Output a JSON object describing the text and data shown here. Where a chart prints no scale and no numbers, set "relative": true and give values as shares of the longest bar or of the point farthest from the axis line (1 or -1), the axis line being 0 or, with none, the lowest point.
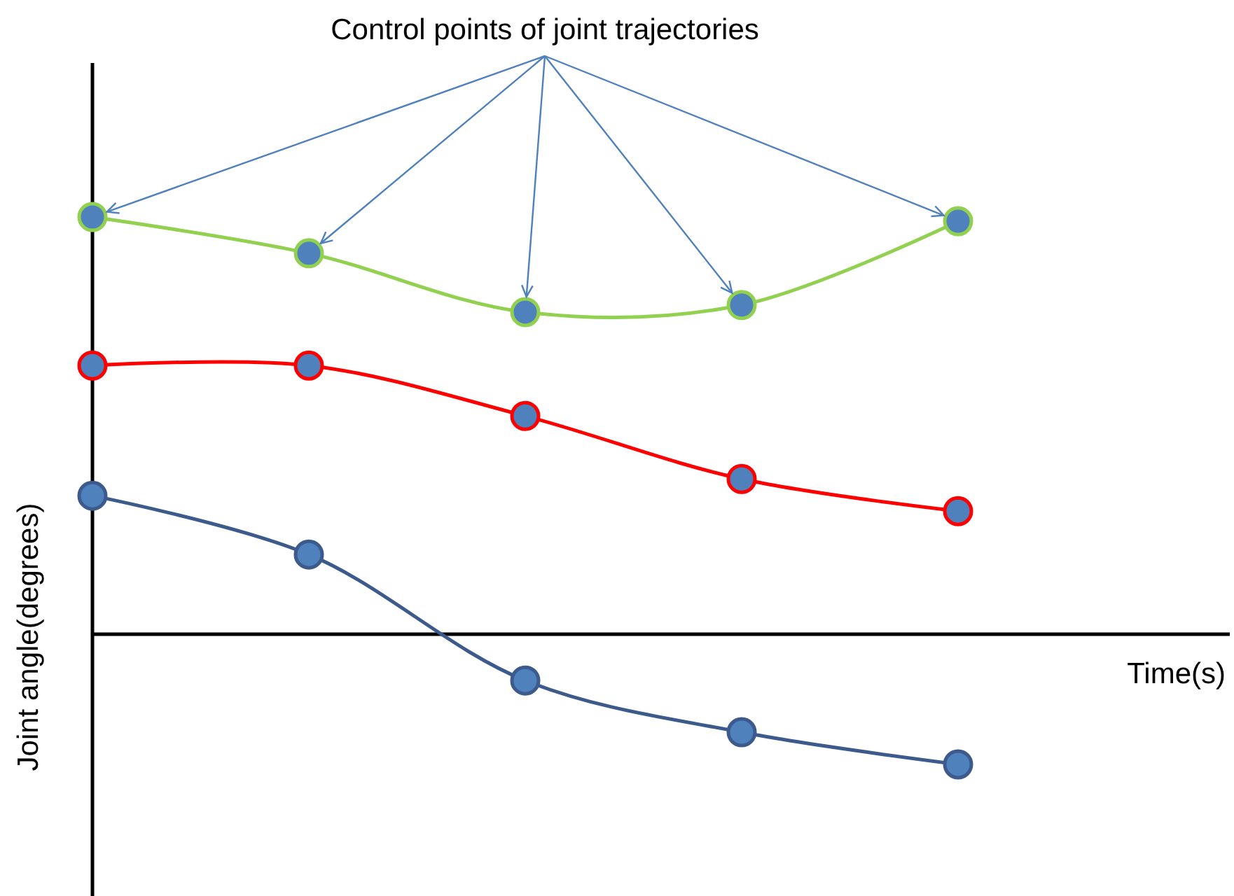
{
  "chart_data": {
    "type": "line",
    "relative": true,
    "xlabel": "Time(s)",
    "ylabel": "Joint angle(degrees)",
    "annotations": [
      "Control points of joint trajectories"
    ],
    "marker": "circle",
    "line_style": "solid",
    "categories": [
      null,
      null,
      null,
      null,
      null
    ],
    "series": [
      {
        "color": "#92d050",
        "values": [
          1,
          0.913,
          0.772,
          0.789,
          0.99
        ]
      },
      {
        "color": "#ff0000",
        "values": [
          0.644,
          0.644,
          0.523,
          0.372,
          0.295
        ]
      },
      {
        "color": "#3c5a8c",
        "values": [
          0.332,
          0.191,
          -0.111,
          -0.235,
          -0.312
        ]
      }
    ]
  }
}
